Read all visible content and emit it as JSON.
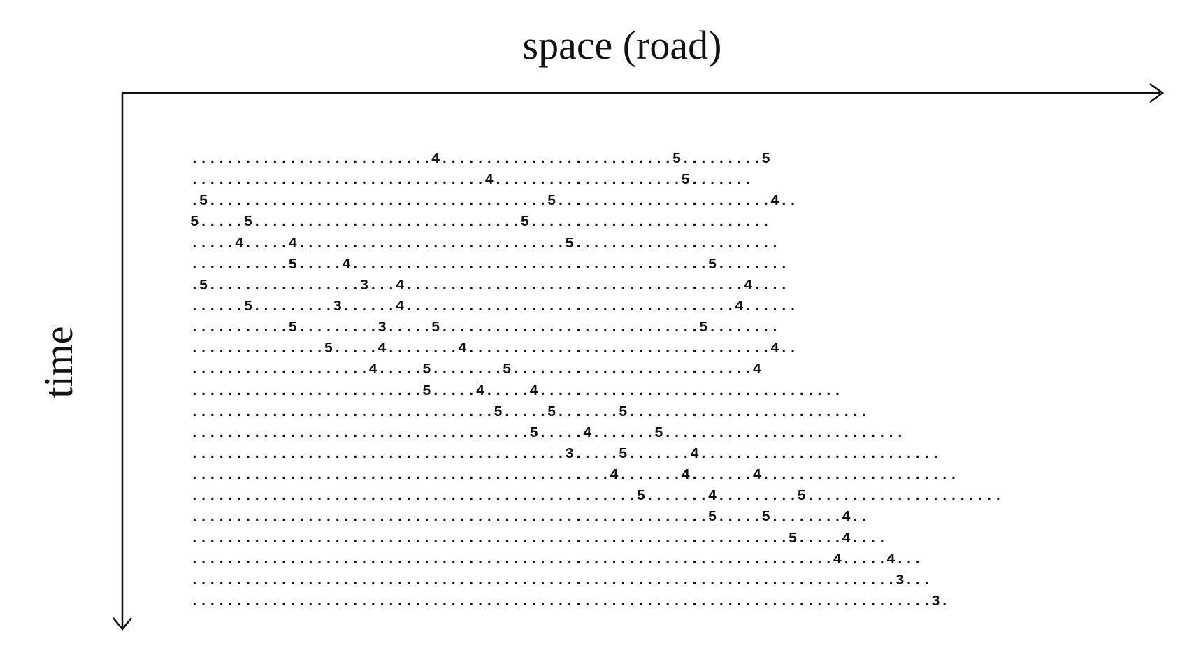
{
  "diagram": {
    "x_axis_label": "space (road)",
    "y_axis_label": "time",
    "rows": [
      "...........................4..........................5.........5",
      ".................................4.....................5.......",
      ".5......................................5........................4..",
      "5.....5..............................5...........................",
      ".....4.....4..............................5.......................",
      "...........5.....4........................................5........",
      ".5.................3...4......................................4....",
      "......5.........3......4.....................................4......",
      "...........5.........3.....5.............................5........",
      "...............5.....4........4..................................4..",
      "....................4.....5........5...........................4",
      "..........................5.....4.....4..................................",
      "..................................5.....5.......5...........................",
      "......................................5.....4.......5...........................",
      "..........................................3.....5.......4...........................",
      "...............................................4.......4.......4......................",
      "..................................................5.......4.........5......................",
      "..........................................................5.....5........4..",
      "...................................................................5.....4....",
      "........................................................................4.....4...",
      "...............................................................................3...",
      "...................................................................................3."
    ]
  }
}
